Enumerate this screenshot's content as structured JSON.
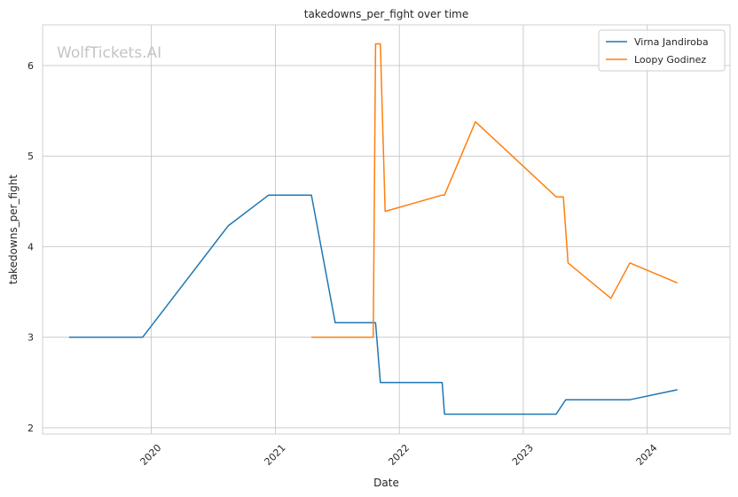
{
  "chart_data": {
    "type": "line",
    "title": "takedowns_per_fight over time",
    "xlabel": "Date",
    "ylabel": "takedowns_per_fight",
    "watermark": "WolfTickets.AI",
    "xlim": [
      "2019-02-15",
      "2024-09-01"
    ],
    "ylim": [
      1.93,
      6.45
    ],
    "x_ticks": [
      {
        "date": "2020-01-01",
        "label": "2020"
      },
      {
        "date": "2021-01-01",
        "label": "2021"
      },
      {
        "date": "2022-01-01",
        "label": "2022"
      },
      {
        "date": "2023-01-01",
        "label": "2023"
      },
      {
        "date": "2024-01-01",
        "label": "2024"
      }
    ],
    "y_ticks": [
      2,
      3,
      4,
      5,
      6
    ],
    "grid": true,
    "legend_position": "top-right",
    "series": [
      {
        "name": "Virna Jandiroba",
        "color": "#1f77b4",
        "points": [
          [
            "2019-05-04",
            3.0
          ],
          [
            "2019-12-07",
            3.0
          ],
          [
            "2020-08-15",
            4.23
          ],
          [
            "2020-12-12",
            4.57
          ],
          [
            "2021-04-17",
            4.57
          ],
          [
            "2021-06-26",
            3.16
          ],
          [
            "2021-10-23",
            3.16
          ],
          [
            "2021-11-06",
            2.5
          ],
          [
            "2022-05-07",
            2.5
          ],
          [
            "2022-05-14",
            2.15
          ],
          [
            "2023-04-08",
            2.15
          ],
          [
            "2023-05-06",
            2.31
          ],
          [
            "2023-11-11",
            2.31
          ],
          [
            "2024-03-30",
            2.42
          ]
        ]
      },
      {
        "name": "Loopy Godinez",
        "color": "#ff7f0e",
        "points": [
          [
            "2021-04-17",
            3.0
          ],
          [
            "2021-10-16",
            3.0
          ],
          [
            "2021-10-23",
            6.24
          ],
          [
            "2021-11-06",
            6.24
          ],
          [
            "2021-11-20",
            4.39
          ],
          [
            "2022-05-07",
            4.57
          ],
          [
            "2022-05-14",
            4.57
          ],
          [
            "2022-08-13",
            5.38
          ],
          [
            "2023-04-08",
            4.55
          ],
          [
            "2023-04-29",
            4.55
          ],
          [
            "2023-05-13",
            3.82
          ],
          [
            "2023-09-16",
            3.43
          ],
          [
            "2023-11-11",
            3.82
          ],
          [
            "2024-03-30",
            3.6
          ]
        ]
      }
    ]
  }
}
